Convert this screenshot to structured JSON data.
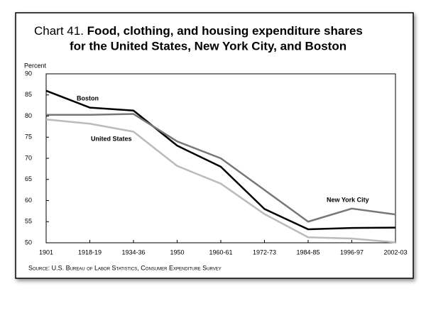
{
  "chart_data": {
    "type": "line",
    "title": [
      "Chart 41.",
      "Food, clothing, and housing expenditure shares",
      "for the United States, New York City, and Boston"
    ],
    "y_label": "Percent",
    "categories": [
      "1901",
      "1918-19",
      "1934-36",
      "1950",
      "1960-61",
      "1972-73",
      "1984-85",
      "1996-97",
      "2002-03"
    ],
    "series": [
      {
        "name": "Boston",
        "color": "#000000",
        "values": [
          86,
          82,
          81.3,
          73,
          68,
          58,
          53.2,
          53.5,
          53.6
        ]
      },
      {
        "name": "New York City",
        "color": "#777777",
        "values": [
          80.3,
          80.3,
          80.5,
          74,
          70,
          62.5,
          55,
          58.1,
          56.7
        ]
      },
      {
        "name": "United States",
        "color": "#bbbbbb",
        "values": [
          79.2,
          78.2,
          76.3,
          68.2,
          64,
          56.8,
          51.3,
          51,
          50.1
        ]
      }
    ],
    "ylim": [
      50,
      90
    ],
    "yticks": [
      50,
      55,
      60,
      65,
      70,
      75,
      80,
      85,
      90
    ],
    "source": "Source: U.S. Bureau of Labor Statistics, Consumer Expenditure Survey"
  }
}
